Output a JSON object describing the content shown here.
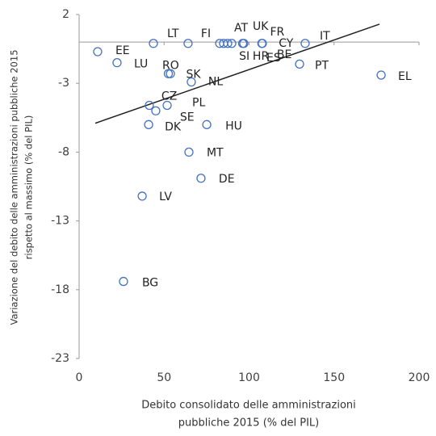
{
  "chart_data": {
    "type": "scatter",
    "y_label": [
      "Variazione del debito delle amministrazioni pubbliche 2015",
      "rispetto al massimo (% del PIL)"
    ],
    "x_label": [
      "Debito consolidato delle amministrazioni",
      "pubbliche 2015 (% del PIL)"
    ],
    "xlim": [
      0,
      200
    ],
    "xticks": [
      0,
      50,
      100,
      150,
      200
    ],
    "ylim": [
      -23,
      2
    ],
    "yticks": [
      2,
      -3,
      -8,
      -13,
      -18,
      -23
    ],
    "color": "#4472c4",
    "labels": [
      "EE",
      "LU",
      "LT",
      "FI",
      "SI",
      "HR",
      "AT",
      "UK",
      "ES",
      "FR",
      "BE",
      "CY",
      "IT",
      "RO",
      "SK",
      "NL",
      "PT",
      "EL",
      "CZ",
      "PL",
      "SE",
      "DK",
      "HU",
      "MT",
      "DE",
      "LV",
      "BG"
    ],
    "x": [
      10.9,
      22.3,
      43.7,
      64.1,
      82.7,
      85.0,
      87.4,
      89.8,
      96.9,
      96.2,
      107.8,
      107.5,
      133,
      53.7,
      52.5,
      66,
      129.7,
      177.7,
      41.3,
      51.8,
      45.1,
      40.9,
      75.1,
      64.6,
      71.7,
      37.1,
      26.1
    ],
    "y": [
      -0.7,
      -1.5,
      -0.1,
      -0.1,
      -0.1,
      -0.1,
      -0.1,
      -0.1,
      -0.1,
      -0.1,
      -0.1,
      -0.1,
      -0.1,
      -2.3,
      -2.3,
      -2.9,
      -1.6,
      -2.4,
      -4.6,
      -4.6,
      -5.0,
      -6.0,
      -6.0,
      -8.0,
      -9.9,
      -11.2,
      -17.4
    ],
    "trendline": {
      "x": [
        9.5,
        176.7
      ],
      "y": [
        -5.9,
        1.3
      ]
    }
  }
}
